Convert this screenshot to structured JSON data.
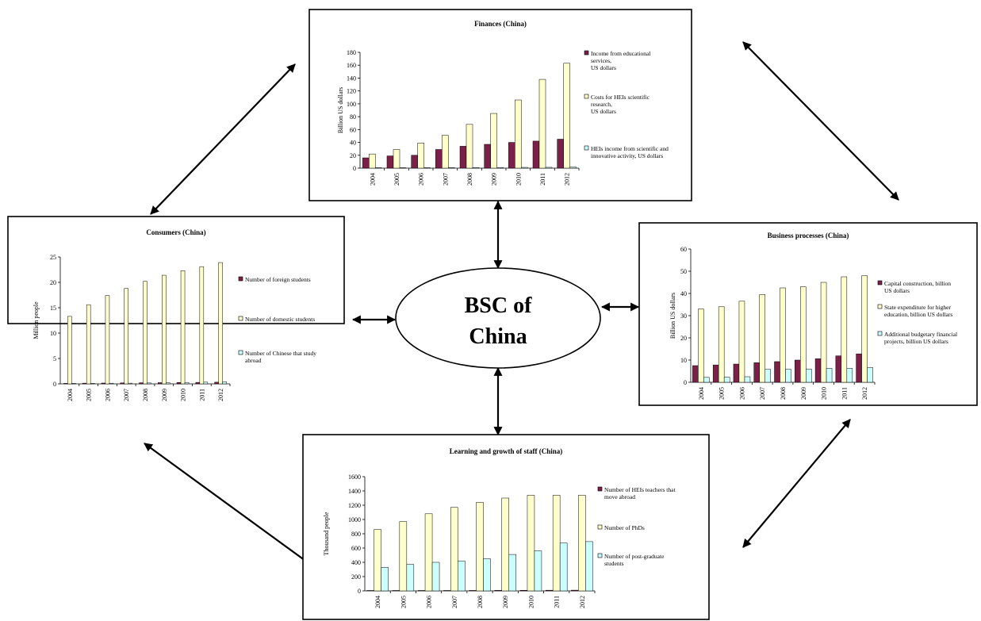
{
  "center": {
    "line1": "BSC of",
    "line2": "China"
  },
  "colors": {
    "series1": "#7b2048",
    "series2": "#ffffcc",
    "series3": "#ccffff"
  },
  "chart_data": [
    {
      "id": "finances",
      "type": "bar",
      "title": "Finances (China)",
      "ylabel": "Billion US dollars",
      "categories": [
        "2004",
        "2005",
        "2006",
        "2007",
        "2008",
        "2009",
        "2010",
        "2011",
        "2012"
      ],
      "ylim": [
        0,
        180
      ],
      "yticks": [
        0,
        20,
        40,
        60,
        80,
        100,
        120,
        140,
        160,
        180
      ],
      "series": [
        {
          "name": "Income from educational services, US dollars",
          "legend_lines": [
            "Income from educational",
            "services,",
            "US dollars"
          ],
          "values": [
            16,
            19,
            20,
            29,
            34,
            37,
            40,
            42,
            45
          ]
        },
        {
          "name": "Costs for HEIs scientific research, US dollars",
          "legend_lines": [
            "Costs for HEIs scientific",
            "research,",
            "US dollars"
          ],
          "values": [
            22,
            29,
            39,
            51,
            68,
            85,
            106,
            138,
            163
          ]
        },
        {
          "name": "HEIs income from scientific and innovative activity, US dollars",
          "legend_lines": [
            "HEIs income from scientific and",
            "innovative activity, US dollars"
          ],
          "values": [
            0.4,
            0.5,
            0.6,
            0.8,
            1,
            1,
            1.2,
            1.3,
            1.5
          ]
        }
      ]
    },
    {
      "id": "consumers",
      "type": "bar",
      "title": "Consumers (China)",
      "ylabel": "Million people",
      "categories": [
        "2004",
        "2005",
        "2006",
        "2007",
        "2008",
        "2009",
        "2010",
        "2011",
        "2012"
      ],
      "ylim": [
        0,
        25
      ],
      "yticks": [
        0,
        5,
        10,
        15,
        20,
        25
      ],
      "series": [
        {
          "name": "Number of foreign students",
          "legend_lines": [
            "Number of foreign students"
          ],
          "values": [
            0.1,
            0.14,
            0.16,
            0.19,
            0.22,
            0.24,
            0.27,
            0.29,
            0.33
          ]
        },
        {
          "name": "Number of domestic students",
          "legend_lines": [
            "Number of domestic students"
          ],
          "values": [
            13.3,
            15.6,
            17.4,
            18.8,
            20.2,
            21.4,
            22.3,
            23.1,
            23.9
          ]
        },
        {
          "name": "Number of Chinese that study abroad",
          "legend_lines": [
            "Number of Chinese that study",
            "abroad"
          ],
          "values": [
            0.11,
            0.12,
            0.13,
            0.14,
            0.18,
            0.23,
            0.28,
            0.34,
            0.4
          ]
        }
      ]
    },
    {
      "id": "business",
      "type": "bar",
      "title": "Business processes (China)",
      "ylabel": "Billion US dollars",
      "categories": [
        "2004",
        "2005",
        "2006",
        "2007",
        "2008",
        "2009",
        "2010",
        "2011",
        "2012"
      ],
      "ylim": [
        0,
        60
      ],
      "yticks": [
        0,
        10,
        20,
        30,
        40,
        50,
        60
      ],
      "series": [
        {
          "name": "Capital construction, billion US dollars",
          "legend_lines": [
            "Capital construction, billion",
            "US dollars"
          ],
          "values": [
            7.5,
            7.8,
            8.2,
            8.8,
            9.3,
            10,
            10.6,
            11.9,
            12.8
          ]
        },
        {
          "name": "State expenditure for higher education, billion US dollars",
          "legend_lines": [
            "State expenditure for higher",
            "education, billion US dollars"
          ],
          "values": [
            33,
            34,
            36.5,
            39.5,
            42.5,
            43,
            45,
            47.5,
            48
          ]
        },
        {
          "name": "Additional budgetary financial projects, billion US dollars",
          "legend_lines": [
            "Additional budgetary financial",
            "projects, billion US dollars"
          ],
          "values": [
            2.2,
            2.3,
            2.5,
            5.8,
            5.8,
            6,
            6.3,
            6.3,
            6.6
          ]
        }
      ]
    },
    {
      "id": "learning",
      "type": "bar",
      "title": "Learning and growth of staff (China)",
      "ylabel": "Thousand people",
      "categories": [
        "2004",
        "2005",
        "2006",
        "2007",
        "2008",
        "2009",
        "2010",
        "2011",
        "2012"
      ],
      "ylim": [
        0,
        1600
      ],
      "yticks": [
        0,
        200,
        400,
        600,
        800,
        1000,
        1200,
        1400,
        1600
      ],
      "series": [
        {
          "name": "Number of HEIs teachers that move abroad",
          "legend_lines": [
            "Number of HEIs teachers that",
            "move abroad"
          ],
          "values": [
            3,
            4,
            5,
            5,
            6,
            7,
            8,
            9,
            10
          ]
        },
        {
          "name": "Number of PhDs",
          "legend_lines": [
            "Number of PhDs"
          ],
          "values": [
            860,
            970,
            1080,
            1170,
            1240,
            1300,
            1340,
            1340,
            1340
          ]
        },
        {
          "name": "Number of post-graduate students",
          "legend_lines": [
            "Number of post-graduate",
            "students"
          ],
          "values": [
            330,
            370,
            400,
            420,
            450,
            510,
            560,
            670,
            690
          ]
        }
      ]
    }
  ]
}
